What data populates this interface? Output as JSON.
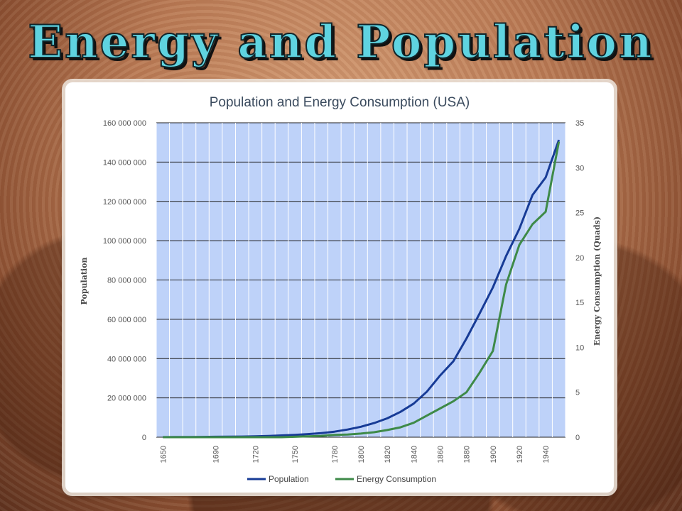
{
  "slide": {
    "title": "Energy and Population"
  },
  "colors": {
    "plot_bg": "#bed2f9",
    "grid": "#1e1e1e",
    "population": "#173b96",
    "energy": "#3e8a48"
  },
  "chart_data": {
    "type": "line",
    "title": "Population and Energy Consumption (USA)",
    "xlabel": "",
    "ylabel": "Population",
    "y2label": "Energy Consumption (Quads)",
    "x": [
      1650,
      1660,
      1670,
      1680,
      1690,
      1700,
      1710,
      1720,
      1730,
      1740,
      1750,
      1760,
      1770,
      1780,
      1790,
      1800,
      1810,
      1820,
      1830,
      1840,
      1850,
      1860,
      1870,
      1880,
      1890,
      1900,
      1910,
      1920,
      1930,
      1940,
      1950
    ],
    "x_tick_labels": [
      "1650",
      "1690",
      "1720",
      "1750",
      "1780",
      "1800",
      "1820",
      "1840",
      "1860",
      "1880",
      "1900",
      "1920",
      "1940"
    ],
    "ylim": [
      0,
      160000000
    ],
    "y_ticks": [
      "0",
      "20 000 000",
      "40 000 000",
      "60 000 000",
      "80 000 000",
      "100 000 000",
      "120 000 000",
      "140 000 000",
      "160 000 000"
    ],
    "y2lim": [
      0,
      35
    ],
    "y2_ticks": [
      "0",
      "5",
      "10",
      "15",
      "20",
      "25",
      "30",
      "35"
    ],
    "grid": true,
    "legend_position": "bottom",
    "series": [
      {
        "name": "Population",
        "axis": "left",
        "values": [
          50000,
          75000,
          110000,
          150000,
          210000,
          250000,
          330000,
          470000,
          630000,
          900000,
          1200000,
          1600000,
          2100000,
          2800000,
          3900000,
          5300000,
          7200000,
          9600000,
          12900000,
          17100000,
          23200000,
          31400000,
          38600000,
          50200000,
          63000000,
          76200000,
          92200000,
          106000000,
          123200000,
          132200000,
          151300000
        ]
      },
      {
        "name": "Energy Consumption",
        "axis": "right",
        "values": [
          0,
          0,
          0,
          0,
          0,
          0,
          0,
          0,
          0,
          0,
          0.05,
          0.1,
          0.15,
          0.25,
          0.3,
          0.4,
          0.55,
          0.8,
          1.1,
          1.6,
          2.4,
          3.2,
          4.0,
          5.0,
          7.2,
          9.6,
          17.0,
          21.4,
          23.7,
          25.1,
          32.9
        ]
      }
    ]
  }
}
